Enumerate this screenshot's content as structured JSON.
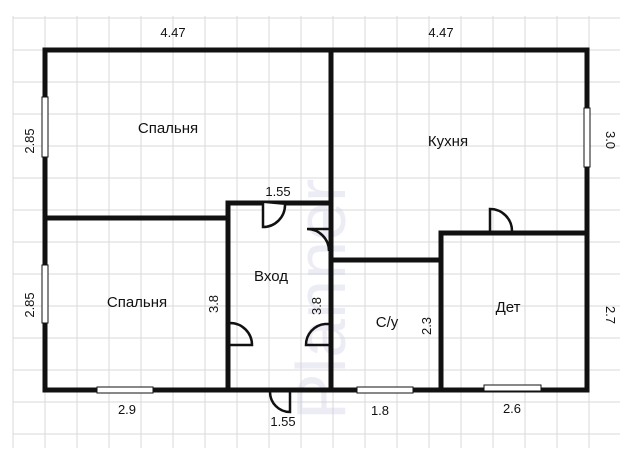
{
  "rooms": [
    {
      "name": "Спальня"
    },
    {
      "name": "Кухня"
    },
    {
      "name": "Спальня"
    },
    {
      "name": "Вход"
    },
    {
      "name": "С/у"
    },
    {
      "name": "Дет"
    }
  ],
  "dimensions": {
    "top_left": "4.47",
    "top_right": "4.47",
    "left_upper": "2.85",
    "left_lower": "2.85",
    "right_upper": "3.0",
    "right_lower": "2.7",
    "entry_top": "1.55",
    "entry_left": "3.8",
    "entry_right": "3.8",
    "bath_right": "2.3",
    "bottom_left": "2.9",
    "bottom_entry": "1.55",
    "bottom_bath": "1.8",
    "bottom_kids": "2.6"
  },
  "watermark": "Planner",
  "colors": {
    "wall": "#111111",
    "grid": "#d9d9d9",
    "background": "#ffffff"
  }
}
